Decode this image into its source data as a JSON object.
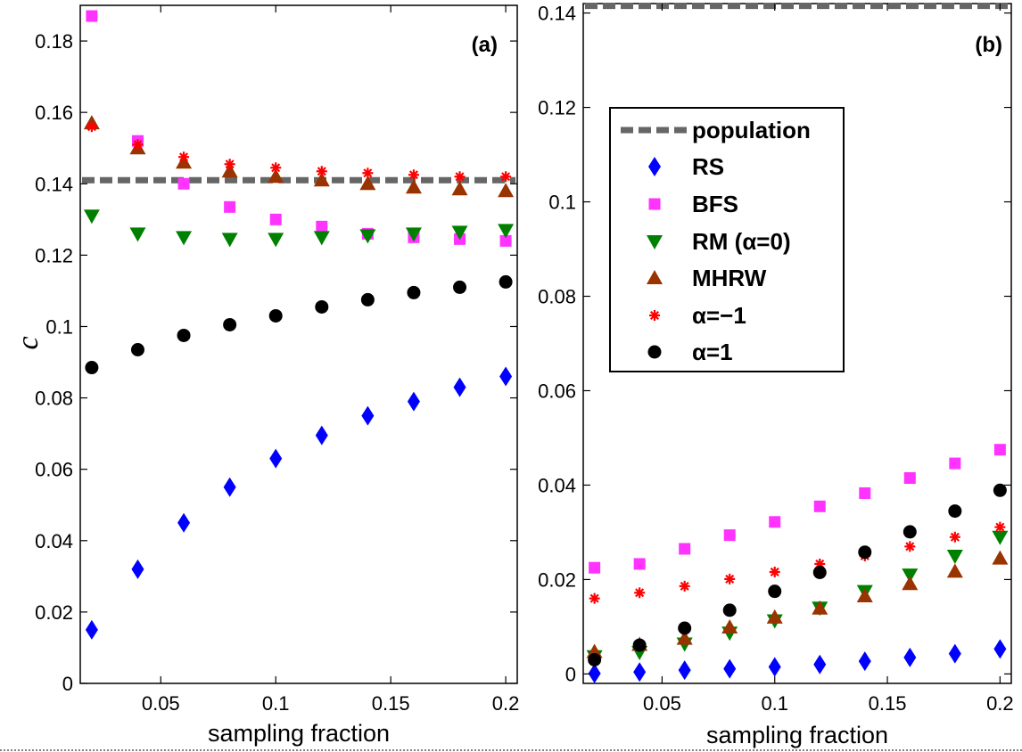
{
  "chart_data": [
    {
      "panel_label": "(a)",
      "type": "scatter",
      "xlabel": "sampling fraction",
      "ylabel": "c",
      "xlim": [
        0.015,
        0.205
      ],
      "ylim": [
        0,
        0.19
      ],
      "xticks": [
        "0.05",
        "0.1",
        "0.15",
        "0.2"
      ],
      "yticks": [
        "0",
        "0.02",
        "0.04",
        "0.06",
        "0.08",
        "0.1",
        "0.12",
        "0.14",
        "0.16",
        "0.18"
      ],
      "grid": false,
      "x": [
        0.02,
        0.04,
        0.06,
        0.08,
        0.1,
        0.12,
        0.14,
        0.16,
        0.18,
        0.2
      ],
      "reference_line": {
        "name": "population",
        "y": 0.141,
        "style": "dashed",
        "color": "#666666"
      },
      "series": [
        {
          "name": "RS",
          "marker": "diamond",
          "color": "#0000ff",
          "values": [
            0.015,
            0.032,
            0.045,
            0.055,
            0.063,
            0.0695,
            0.075,
            0.079,
            0.083,
            0.086
          ]
        },
        {
          "name": "BFS",
          "marker": "square",
          "color": "#ff33ff",
          "values": [
            0.187,
            0.152,
            0.14,
            0.1335,
            0.13,
            0.128,
            0.126,
            0.125,
            0.1245,
            0.124
          ]
        },
        {
          "name": "RM (α=0)",
          "marker": "triangle-down",
          "color": "#008000",
          "values": [
            0.131,
            0.126,
            0.125,
            0.1245,
            0.1245,
            0.125,
            0.1255,
            0.126,
            0.1265,
            0.127
          ]
        },
        {
          "name": "MHRW",
          "marker": "triangle-up",
          "color": "#993300",
          "values": [
            0.157,
            0.15,
            0.146,
            0.1435,
            0.142,
            0.141,
            0.14,
            0.139,
            0.1385,
            0.138
          ]
        },
        {
          "name": "α=−1",
          "marker": "asterisk",
          "color": "#ff0000",
          "values": [
            0.156,
            0.151,
            0.1475,
            0.1455,
            0.1445,
            0.1435,
            0.143,
            0.1425,
            0.142,
            0.142
          ]
        },
        {
          "name": "α=1",
          "marker": "circle",
          "color": "#000000",
          "values": [
            0.0885,
            0.0935,
            0.0975,
            0.1005,
            0.103,
            0.1055,
            0.1075,
            0.1095,
            0.111,
            0.1125
          ]
        }
      ]
    },
    {
      "panel_label": "(b)",
      "type": "scatter",
      "xlabel": "sampling fraction",
      "ylabel": "",
      "xlim": [
        0.015,
        0.205
      ],
      "ylim": [
        -0.002,
        0.142
      ],
      "xticks": [
        "0.05",
        "0.1",
        "0.15",
        "0.2"
      ],
      "yticks": [
        "0",
        "0.02",
        "0.04",
        "0.06",
        "0.08",
        "0.1",
        "0.12",
        "0.14"
      ],
      "grid": false,
      "legend_position": "upper-center",
      "x": [
        0.02,
        0.04,
        0.06,
        0.08,
        0.1,
        0.12,
        0.14,
        0.16,
        0.18,
        0.2
      ],
      "reference_line": {
        "name": "population",
        "y": 0.1415,
        "style": "dashed",
        "color": "#666666"
      },
      "series": [
        {
          "name": "RS",
          "marker": "diamond",
          "color": "#0000ff",
          "values": [
            0.0001,
            0.0004,
            0.0008,
            0.0011,
            0.0015,
            0.002,
            0.0027,
            0.0035,
            0.0043,
            0.0053
          ]
        },
        {
          "name": "BFS",
          "marker": "square",
          "color": "#ff33ff",
          "values": [
            0.0225,
            0.0233,
            0.0265,
            0.0294,
            0.0322,
            0.0355,
            0.0383,
            0.0415,
            0.0446,
            0.0475
          ]
        },
        {
          "name": "RM (α=0)",
          "marker": "triangle-down",
          "color": "#008000",
          "values": [
            0.0037,
            0.0046,
            0.0064,
            0.0087,
            0.0113,
            0.014,
            0.0175,
            0.021,
            0.025,
            0.029
          ]
        },
        {
          "name": "MHRW",
          "marker": "triangle-up",
          "color": "#993300",
          "values": [
            0.0047,
            0.0062,
            0.0075,
            0.0099,
            0.012,
            0.0139,
            0.0165,
            0.0191,
            0.0217,
            0.0245
          ]
        },
        {
          "name": "α=−1",
          "marker": "asterisk",
          "color": "#ff0000",
          "values": [
            0.016,
            0.0172,
            0.0186,
            0.0201,
            0.0216,
            0.0233,
            0.025,
            0.027,
            0.029,
            0.0311
          ]
        },
        {
          "name": "α=1",
          "marker": "circle",
          "color": "#000000",
          "values": [
            0.003,
            0.0061,
            0.0097,
            0.0135,
            0.0175,
            0.0215,
            0.0258,
            0.0301,
            0.0345,
            0.0389
          ]
        }
      ]
    }
  ]
}
